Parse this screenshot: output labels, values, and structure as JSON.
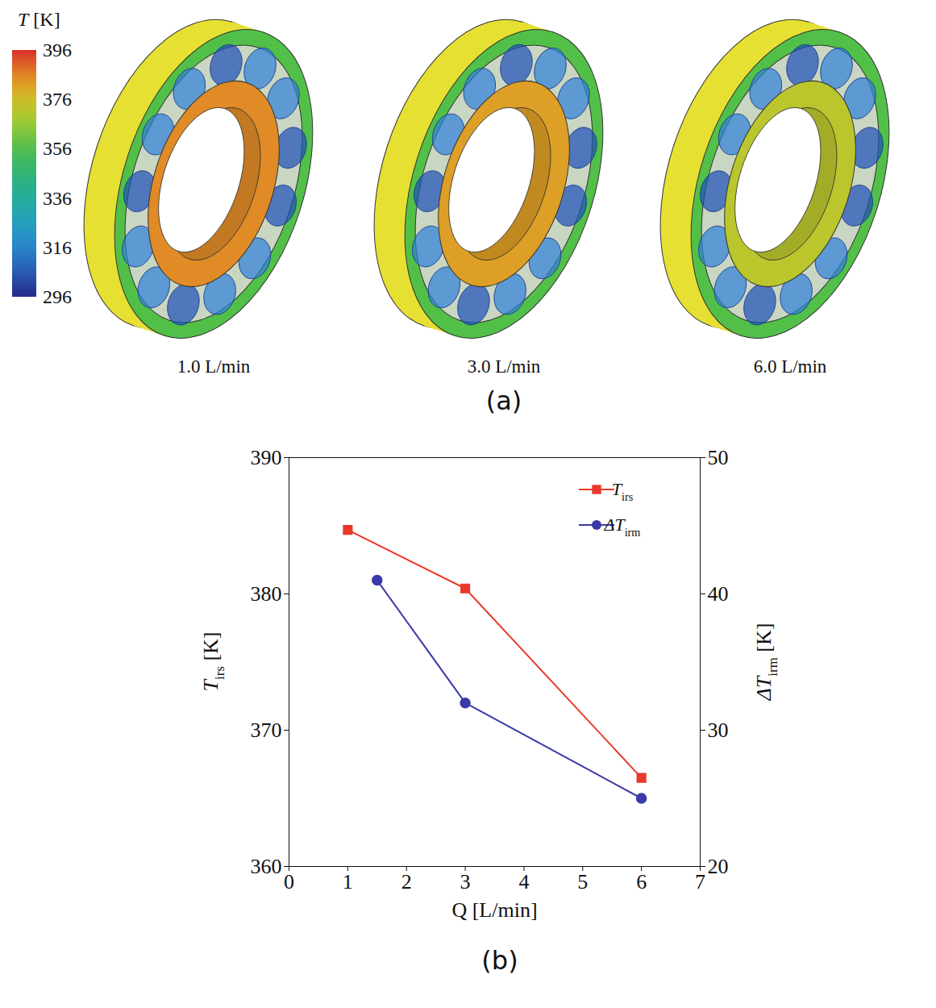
{
  "chart_data": [
    {
      "type": "temperature_field",
      "caption": "(a)",
      "categories": [
        "1.0 L/min",
        "3.0 L/min",
        "6.0 L/min"
      ],
      "values": [
        385,
        382,
        372
      ],
      "colorbar": {
        "label": "T [K]",
        "range": [
          296,
          396
        ],
        "ticks": [
          296,
          316,
          336,
          356,
          376,
          396
        ]
      }
    },
    {
      "type": "line",
      "caption": "(b)",
      "x_label": "Q [L/min]",
      "y_label": "Tirs [K]",
      "y2_label": "ΔTirm [K]",
      "xlim": [
        0,
        7
      ],
      "xticks": [
        0,
        1,
        2,
        3,
        4,
        5,
        6,
        7
      ],
      "ylim": [
        360,
        390
      ],
      "yticks": [
        360,
        370,
        380,
        390
      ],
      "y2lim": [
        20,
        50
      ],
      "y2ticks": [
        20,
        30,
        40,
        50
      ],
      "grid": false,
      "legend": "upper right",
      "series": [
        {
          "name": "Tirs",
          "color": "#e8392a",
          "marker": "square",
          "x": [
            1,
            3,
            6
          ],
          "values": [
            384.7,
            380.4,
            366.5
          ]
        },
        {
          "name": "ΔTirm",
          "color": "#3a3aa8",
          "marker": "circle",
          "axis": "y2",
          "x": [
            1.5,
            3,
            6
          ],
          "values": [
            41,
            32,
            25
          ]
        }
      ]
    }
  ]
}
